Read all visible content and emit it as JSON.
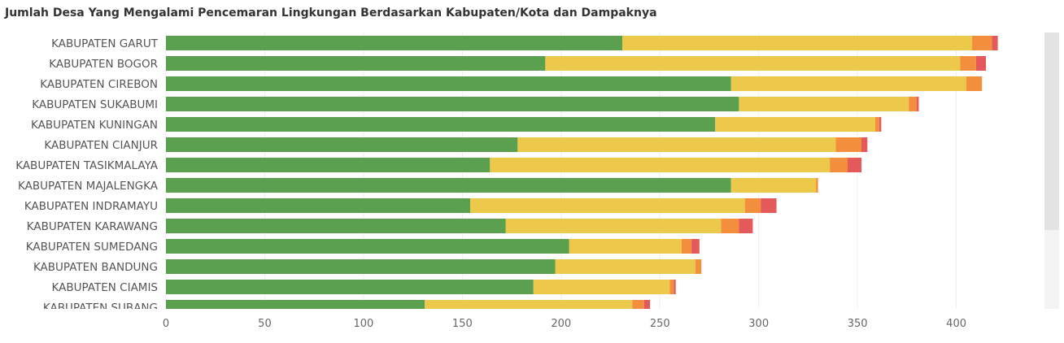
{
  "title": "Jumlah Desa Yang Mengalami Pencemaran Lingkungan Berdasarkan Kabupaten/Kota dan Dampaknya",
  "colors": {
    "series": [
      "#5aa04e",
      "#ecc94b",
      "#f28e3c",
      "#e45a5a"
    ],
    "gridline": "#eeeeee",
    "scrollbar_track": "#f3f3f3",
    "scrollbar_thumb": "#e3e3e3"
  },
  "chart_data": {
    "type": "bar",
    "orientation": "horizontal",
    "stacked": true,
    "title": "Jumlah Desa Yang Mengalami Pencemaran Lingkungan Berdasarkan Kabupaten/Kota dan Dampaknya",
    "categories": [
      "KABUPATEN GARUT",
      "KABUPATEN BOGOR",
      "KABUPATEN CIREBON",
      "KABUPATEN SUKABUMI",
      "KABUPATEN KUNINGAN",
      "KABUPATEN CIANJUR",
      "KABUPATEN TASIKMALAYA",
      "KABUPATEN MAJALENGKA",
      "KABUPATEN INDRAMAYU",
      "KABUPATEN KARAWANG",
      "KABUPATEN SUMEDANG",
      "KABUPATEN BANDUNG",
      "KABUPATEN CIAMIS",
      "KABUPATEN SUBANG"
    ],
    "series": [
      {
        "values": [
          231,
          192,
          286,
          290,
          278,
          178,
          164,
          286,
          154,
          172,
          204,
          197,
          186,
          131
        ]
      },
      {
        "values": [
          177,
          210,
          119,
          86,
          81,
          161,
          172,
          43,
          139,
          109,
          57,
          71,
          69,
          105
        ]
      },
      {
        "values": [
          10,
          8,
          8,
          4,
          2,
          13,
          9,
          1,
          8,
          9,
          5,
          3,
          2,
          6
        ]
      },
      {
        "values": [
          3,
          5,
          0,
          1,
          1,
          3,
          7,
          0,
          8,
          7,
          4,
          0,
          1,
          3
        ]
      }
    ],
    "xticks": [
      0,
      50,
      100,
      150,
      200,
      250,
      300,
      350,
      400
    ],
    "xlim": [
      0,
      445
    ],
    "xlabel": "",
    "ylabel": "",
    "grid": true,
    "legend": "none"
  }
}
